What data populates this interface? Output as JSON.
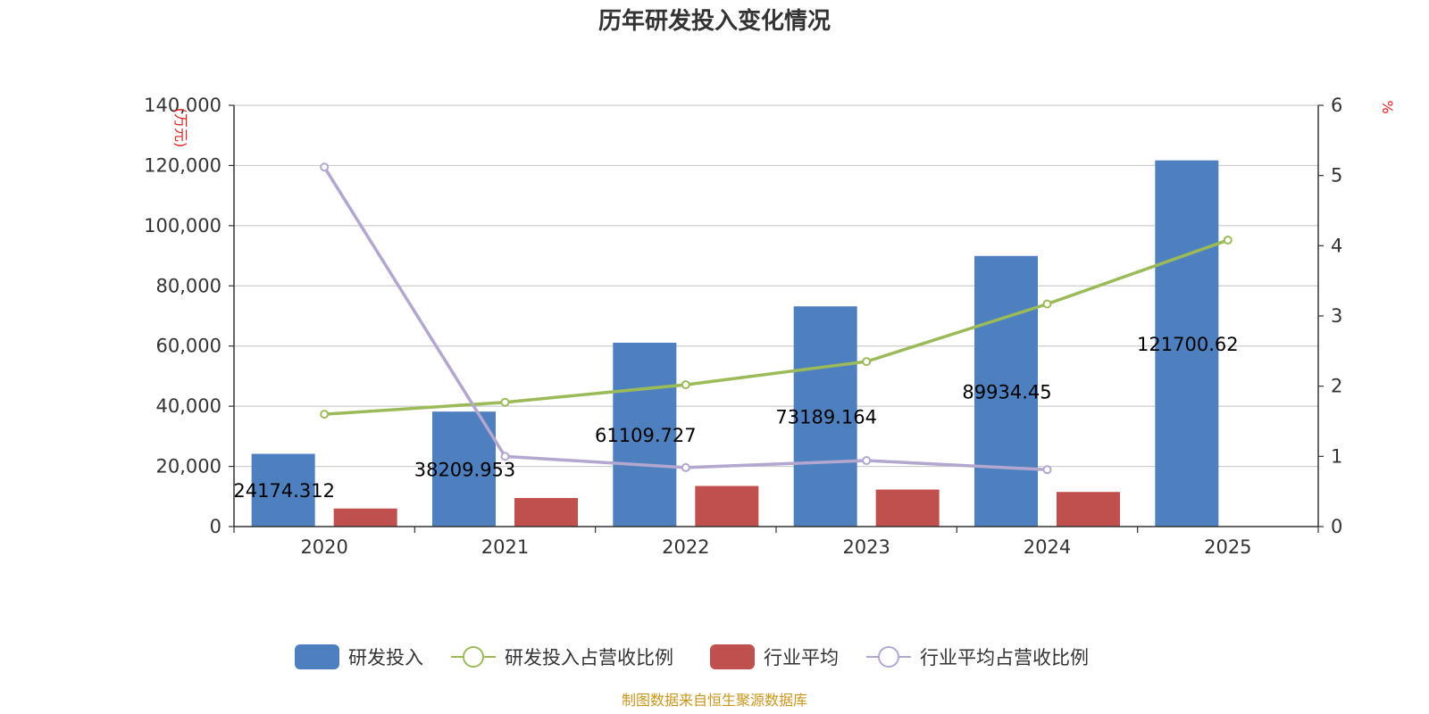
{
  "chart_data": {
    "type": "bar",
    "title": "历年研发投入变化情况",
    "categories": [
      "2020",
      "2021",
      "2022",
      "2023",
      "2024",
      "2025"
    ],
    "y_left": {
      "unit": "(万元)",
      "ylim": [
        0,
        140000
      ],
      "ticks": [
        0,
        20000,
        40000,
        60000,
        80000,
        100000,
        120000,
        140000
      ],
      "tick_labels": [
        "0",
        "20,000",
        "40,000",
        "60,000",
        "80,000",
        "100,000",
        "120,000",
        "140,000"
      ]
    },
    "y_right": {
      "unit": "%",
      "ylim": [
        0,
        6
      ],
      "ticks": [
        0,
        1,
        2,
        3,
        4,
        5,
        6
      ],
      "tick_labels": [
        "0",
        "1",
        "2",
        "3",
        "4",
        "5",
        "6"
      ]
    },
    "grid": true,
    "legend_position": "bottom-center",
    "series": [
      {
        "name": "研发投入",
        "kind": "bar",
        "axis": "left",
        "color": "#4e7fbf",
        "values": [
          24174.312,
          38209.953,
          61109.727,
          73189.164,
          89934.45,
          121700.62
        ],
        "labels": [
          "24174.312",
          "38209.953",
          "61109.727",
          "73189.164",
          "89934.45",
          "121700.62"
        ]
      },
      {
        "name": "研发投入占营收比例",
        "kind": "line",
        "axis": "right",
        "color": "#9bbb59",
        "values": [
          1.6,
          1.77,
          2.02,
          2.35,
          3.17,
          4.08
        ]
      },
      {
        "name": "行业平均",
        "kind": "bar",
        "axis": "left",
        "color": "#c0504d",
        "values": [
          6000,
          9500,
          13500,
          12300,
          11500,
          null
        ]
      },
      {
        "name": "行业平均占营收比例",
        "kind": "line",
        "axis": "right",
        "color": "#b3a6cf",
        "values": [
          5.12,
          1.0,
          0.84,
          0.94,
          0.81,
          null
        ]
      }
    ],
    "source": "制图数据来自恒生聚源数据库"
  },
  "colors": {
    "axis": "#333333",
    "grid": "#cccccc",
    "unit_label": "#e02020",
    "source": "#c8961e"
  }
}
